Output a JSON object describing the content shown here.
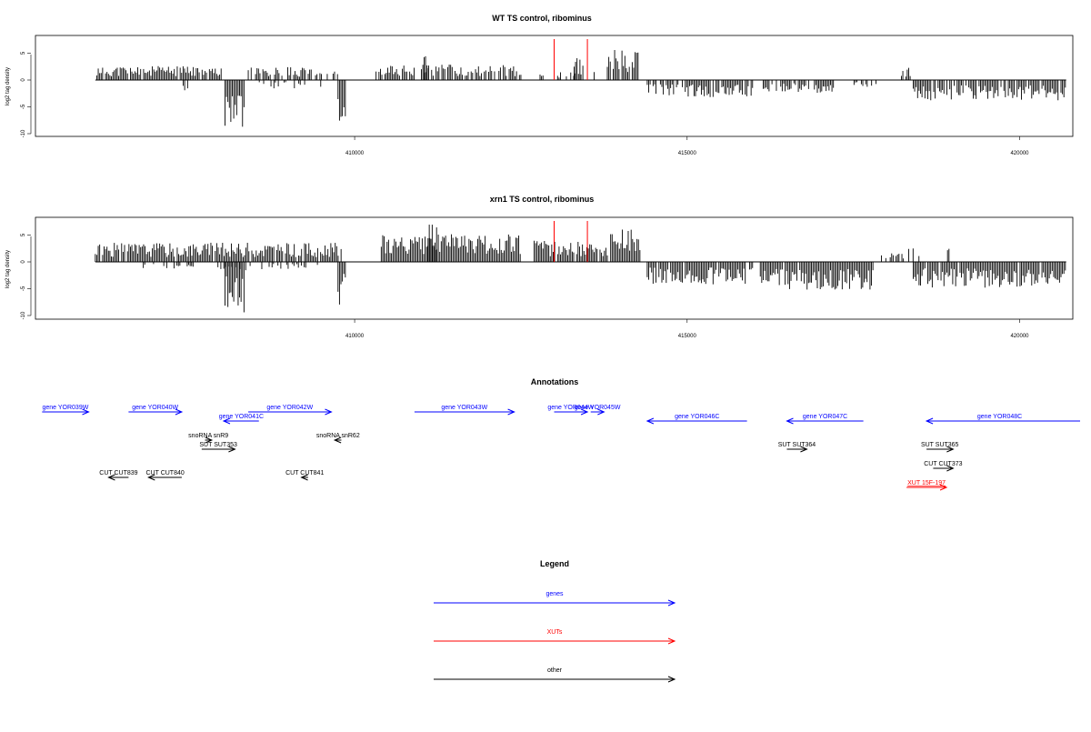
{
  "colors": {
    "gene": "#0000ff",
    "xut": "#ff0000",
    "other": "#000000",
    "highlight": "#ff0000",
    "signal": "#000000"
  },
  "chart_data": [
    {
      "type": "bar",
      "title": "WT TS control, ribominus",
      "ylabel": "log2 tag density",
      "ylim": [
        -10,
        8
      ],
      "xlim": [
        405200,
        420800
      ],
      "yticks": [
        "-10",
        "-5",
        "0",
        "5"
      ],
      "xticks": [
        {
          "value": 410000,
          "label": "410000"
        },
        {
          "value": 415000,
          "label": "415000"
        },
        {
          "value": 420000,
          "label": "420000"
        }
      ],
      "highlight_x": [
        413000,
        413500
      ],
      "regions": [
        {
          "start": 406100,
          "end": 408000,
          "sign": 1,
          "amp": 2.6,
          "density": 0.85,
          "seed": 11
        },
        {
          "start": 407400,
          "end": 407500,
          "sign": -1,
          "amp": 2.2,
          "density": 0.2,
          "seed": 12
        },
        {
          "start": 408050,
          "end": 408350,
          "sign": -1,
          "amp": 9.3,
          "density": 1.0,
          "seed": 13
        },
        {
          "start": 408400,
          "end": 409800,
          "sign": 1,
          "amp": 2.4,
          "density": 0.7,
          "seed": 14
        },
        {
          "start": 408500,
          "end": 409500,
          "sign": -1,
          "amp": 1.6,
          "density": 0.2,
          "seed": 15
        },
        {
          "start": 409750,
          "end": 409870,
          "sign": -1,
          "amp": 7.8,
          "density": 1.0,
          "seed": 16
        },
        {
          "start": 410300,
          "end": 412500,
          "sign": 1,
          "amp": 2.9,
          "density": 0.75,
          "seed": 17
        },
        {
          "start": 411000,
          "end": 411100,
          "sign": 1,
          "amp": 4.8,
          "density": 0.7,
          "seed": 18
        },
        {
          "start": 412700,
          "end": 413700,
          "sign": 1,
          "amp": 1.8,
          "density": 0.3,
          "seed": 19
        },
        {
          "start": 413300,
          "end": 413450,
          "sign": 1,
          "amp": 4.2,
          "density": 0.6,
          "seed": 20
        },
        {
          "start": 413800,
          "end": 414300,
          "sign": 1,
          "amp": 5.6,
          "density": 0.9,
          "seed": 21
        },
        {
          "start": 414400,
          "end": 416000,
          "sign": -1,
          "amp": 3.2,
          "density": 0.8,
          "seed": 22
        },
        {
          "start": 416100,
          "end": 417200,
          "sign": -1,
          "amp": 2.4,
          "density": 0.75,
          "seed": 23
        },
        {
          "start": 417400,
          "end": 417900,
          "sign": -1,
          "amp": 1.4,
          "density": 0.4,
          "seed": 24
        },
        {
          "start": 418200,
          "end": 418500,
          "sign": 1,
          "amp": 2.3,
          "density": 0.5,
          "seed": 25
        },
        {
          "start": 418400,
          "end": 420700,
          "sign": -1,
          "amp": 3.8,
          "density": 0.85,
          "seed": 26
        }
      ]
    },
    {
      "type": "bar",
      "title": "xrn1 TS control, ribominus",
      "ylabel": "log2 tag density",
      "ylim": [
        -10,
        8
      ],
      "xlim": [
        405200,
        420800
      ],
      "yticks": [
        "-10",
        "-5",
        "0",
        "5"
      ],
      "xticks": [
        {
          "value": 410000,
          "label": "410000"
        },
        {
          "value": 415000,
          "label": "415000"
        },
        {
          "value": 420000,
          "label": "420000"
        }
      ],
      "highlight_x": [
        413000,
        413500
      ],
      "regions": [
        {
          "start": 406100,
          "end": 409800,
          "sign": 1,
          "amp": 3.6,
          "density": 0.95,
          "seed": 31
        },
        {
          "start": 406800,
          "end": 409600,
          "sign": -1,
          "amp": 1.6,
          "density": 0.25,
          "seed": 32
        },
        {
          "start": 408050,
          "end": 408350,
          "sign": -1,
          "amp": 9.6,
          "density": 1.0,
          "seed": 33
        },
        {
          "start": 409750,
          "end": 409870,
          "sign": -1,
          "amp": 8.0,
          "density": 1.0,
          "seed": 34
        },
        {
          "start": 410400,
          "end": 412500,
          "sign": 1,
          "amp": 5.2,
          "density": 1.0,
          "seed": 35
        },
        {
          "start": 411100,
          "end": 411250,
          "sign": 1,
          "amp": 7.6,
          "density": 0.9,
          "seed": 36
        },
        {
          "start": 412700,
          "end": 413800,
          "sign": 1,
          "amp": 4.0,
          "density": 0.95,
          "seed": 37
        },
        {
          "start": 413850,
          "end": 414300,
          "sign": 1,
          "amp": 6.2,
          "density": 1.0,
          "seed": 38
        },
        {
          "start": 414400,
          "end": 416000,
          "sign": -1,
          "amp": 4.2,
          "density": 0.95,
          "seed": 39
        },
        {
          "start": 416100,
          "end": 417800,
          "sign": -1,
          "amp": 5.2,
          "density": 0.95,
          "seed": 40
        },
        {
          "start": 417900,
          "end": 418300,
          "sign": 1,
          "amp": 1.8,
          "density": 0.4,
          "seed": 41
        },
        {
          "start": 418200,
          "end": 418500,
          "sign": 1,
          "amp": 3.1,
          "density": 0.5,
          "seed": 42
        },
        {
          "start": 418850,
          "end": 418950,
          "sign": 1,
          "amp": 2.6,
          "density": 0.6,
          "seed": 43
        },
        {
          "start": 418400,
          "end": 420700,
          "sign": -1,
          "amp": 4.8,
          "density": 0.95,
          "seed": 44
        }
      ]
    }
  ],
  "annotations": {
    "title": "Annotations",
    "features": [
      {
        "label": "gene YOR039W",
        "type": "gene",
        "start": 405300,
        "end": 406000,
        "strand": "+",
        "row": 0
      },
      {
        "label": "gene YOR040W",
        "type": "gene",
        "start": 406600,
        "end": 407400,
        "strand": "+",
        "row": 0
      },
      {
        "label": "gene YOR042W",
        "type": "gene",
        "start": 408400,
        "end": 409650,
        "strand": "+",
        "row": 0
      },
      {
        "label": "gene YOR041C",
        "type": "gene",
        "start": 408030,
        "end": 408560,
        "strand": "-",
        "row": 1
      },
      {
        "label": "gene YOR043W",
        "type": "gene",
        "start": 410900,
        "end": 412400,
        "strand": "+",
        "row": 0
      },
      {
        "label": "gene YOR044W",
        "type": "gene",
        "start": 413000,
        "end": 413500,
        "strand": "+",
        "row": 0
      },
      {
        "label": "gene YOR045W",
        "type": "gene",
        "start": 413550,
        "end": 413750,
        "strand": "+",
        "row": 0
      },
      {
        "label": "gene YOR046C",
        "type": "gene",
        "start": 414400,
        "end": 415900,
        "strand": "-",
        "row": 1
      },
      {
        "label": "gene YOR047C",
        "type": "gene",
        "start": 416500,
        "end": 417650,
        "strand": "-",
        "row": 1
      },
      {
        "label": "gene YOR048C",
        "type": "gene",
        "start": 418600,
        "end": 421400,
        "strand": "-",
        "row": 1
      },
      {
        "label": "snoRNA snR9",
        "type": "other",
        "start": 407750,
        "end": 407850,
        "strand": "+",
        "row": 2
      },
      {
        "label": "SUT SUT353",
        "type": "other",
        "start": 407700,
        "end": 408200,
        "strand": "+",
        "row": 3
      },
      {
        "label": "snoRNA snR62",
        "type": "other",
        "start": 409700,
        "end": 409800,
        "strand": "-",
        "row": 2
      },
      {
        "label": "SUT SUT364",
        "type": "other",
        "start": 416500,
        "end": 416800,
        "strand": "+",
        "row": 3
      },
      {
        "label": "SUT SUT365",
        "type": "other",
        "start": 418600,
        "end": 419000,
        "strand": "+",
        "row": 3
      },
      {
        "label": "CUT CUT373",
        "type": "other",
        "start": 418700,
        "end": 419000,
        "strand": "+",
        "row": 4
      },
      {
        "label": "CUT CUT839",
        "type": "other",
        "start": 406300,
        "end": 406600,
        "strand": "-",
        "row": 5
      },
      {
        "label": "CUT CUT840",
        "type": "other",
        "start": 406900,
        "end": 407400,
        "strand": "-",
        "row": 5
      },
      {
        "label": "CUT CUT841",
        "type": "other",
        "start": 409200,
        "end": 409300,
        "strand": "-",
        "row": 5
      },
      {
        "label": "XUT 15F-197",
        "type": "xut",
        "start": 418300,
        "end": 418900,
        "strand": "+",
        "row": 6
      }
    ]
  },
  "legend": {
    "title": "Legend",
    "items": [
      {
        "label": "genes",
        "type": "gene"
      },
      {
        "label": "XUTs",
        "type": "xut"
      },
      {
        "label": "other",
        "type": "other"
      }
    ]
  }
}
